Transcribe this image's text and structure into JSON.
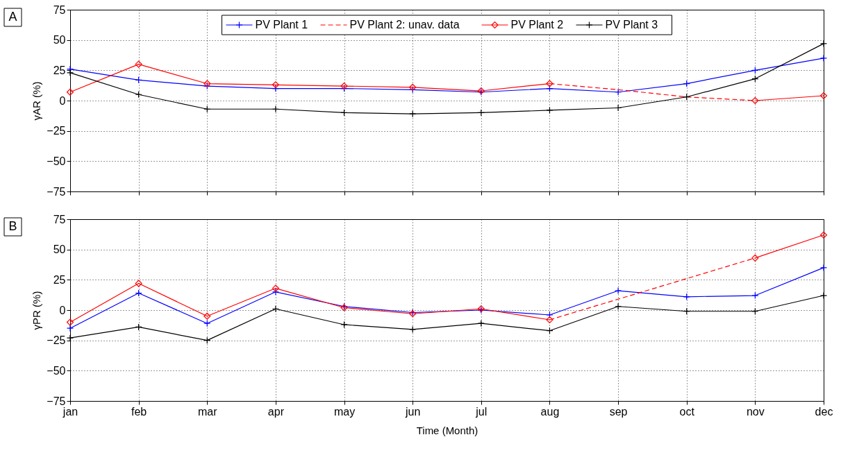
{
  "chart_data": [
    {
      "type": "line",
      "ylabel": "γAR (%)",
      "categories": [
        "jan",
        "feb",
        "mar",
        "apr",
        "may",
        "jun",
        "jul",
        "aug",
        "sep",
        "oct",
        "nov",
        "dec"
      ],
      "ylim": [
        -75,
        75
      ],
      "yticks": [
        -75,
        -50,
        -25,
        0,
        25,
        50,
        75
      ],
      "grid": true,
      "legend": "top",
      "tick_labels": "y",
      "annotations": [
        "A"
      ],
      "series": [
        {
          "name": "PV Plant 1",
          "color": "#0000ff",
          "marker": "cross",
          "line_style": "solid",
          "values": [
            26,
            17,
            12,
            10,
            10,
            9,
            7,
            10,
            7,
            14,
            25,
            35
          ]
        },
        {
          "name": "PV Plant 2: unav. data",
          "color": "#ff0000",
          "marker": "none",
          "line_style": "dashed",
          "values": [
            null,
            null,
            null,
            null,
            null,
            null,
            null,
            14,
            9,
            3,
            0,
            null
          ]
        },
        {
          "name": "PV Plant 2",
          "color": "#ff0000",
          "marker": "diamond",
          "line_style": "solid",
          "values": [
            7,
            30,
            14,
            13,
            12,
            11,
            8,
            14,
            null,
            null,
            0,
            4
          ]
        },
        {
          "name": "PV Plant 3",
          "color": "#000000",
          "marker": "cross",
          "line_style": "solid",
          "values": [
            23,
            5,
            -7,
            -7,
            -10,
            -11,
            -10,
            -8,
            -6,
            3,
            18,
            47
          ]
        }
      ]
    },
    {
      "type": "line",
      "ylabel": "γPR (%)",
      "xlabel": "Time (Month)",
      "categories": [
        "jan",
        "feb",
        "mar",
        "apr",
        "may",
        "jun",
        "jul",
        "aug",
        "sep",
        "oct",
        "nov",
        "dec"
      ],
      "ylim": [
        -75,
        75
      ],
      "yticks": [
        -75,
        -50,
        -25,
        0,
        25,
        50,
        75
      ],
      "grid": true,
      "annotations": [
        "B"
      ],
      "series": [
        {
          "color": "#0000ff",
          "marker": "cross",
          "line_style": "solid",
          "values": [
            -15,
            14,
            -11,
            15,
            3,
            -2,
            0,
            -4,
            16,
            11,
            12,
            35
          ]
        },
        {
          "color": "#ff0000",
          "marker": "none",
          "line_style": "dashed",
          "values": [
            null,
            null,
            null,
            null,
            null,
            null,
            null,
            -8,
            9,
            26,
            43,
            null
          ]
        },
        {
          "color": "#ff0000",
          "marker": "diamond",
          "line_style": "solid",
          "values": [
            -10,
            22,
            -5,
            18,
            2,
            -3,
            1,
            -8,
            null,
            null,
            43,
            62
          ]
        },
        {
          "color": "#000000",
          "marker": "cross",
          "line_style": "solid",
          "values": [
            -23,
            -14,
            -25,
            1,
            -12,
            -16,
            -11,
            -17,
            3,
            -1,
            -1,
            12
          ]
        }
      ]
    }
  ]
}
